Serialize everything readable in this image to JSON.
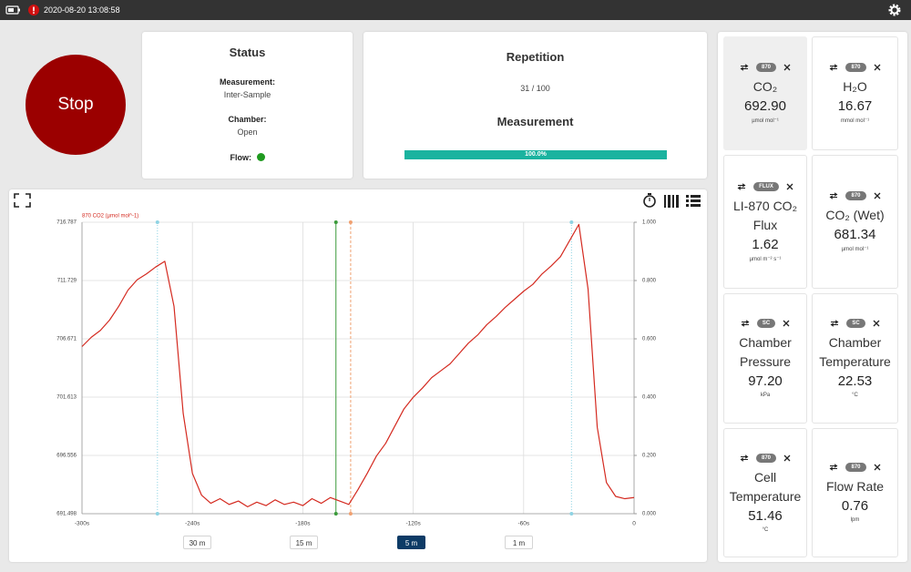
{
  "status_bar": {
    "timestamp": "2020-08-20 13:08:58"
  },
  "stop_button": "Stop",
  "status": {
    "title": "Status",
    "measurement_label": "Measurement:",
    "measurement": "Inter-Sample",
    "chamber_label": "Chamber:",
    "chamber": "Open",
    "flow_label": "Flow:"
  },
  "repetition": {
    "title": "Repetition",
    "count": "31 / 100",
    "measurement_title": "Measurement",
    "progress": 100,
    "progress_label": "100.0%"
  },
  "chart_data": {
    "type": "line",
    "x": [
      -300,
      -295,
      -290,
      -285,
      -280,
      -275,
      -270,
      -265,
      -260,
      -255,
      -250,
      -245,
      -240,
      -235,
      -230,
      -225,
      -220,
      -215,
      -210,
      -205,
      -200,
      -195,
      -190,
      -185,
      -180,
      -175,
      -170,
      -165,
      -160,
      -155,
      -150,
      -145,
      -140,
      -135,
      -130,
      -125,
      -120,
      -115,
      -110,
      -105,
      -100,
      -95,
      -90,
      -85,
      -80,
      -75,
      -70,
      -65,
      -60,
      -55,
      -50,
      -45,
      -40,
      -35,
      -30,
      -25,
      -20,
      -15,
      -10,
      -5,
      0
    ],
    "series": [
      {
        "name": "870 CO2 (µmol mol^-1)",
        "color": "#d42a20",
        "values": [
          706.0,
          706.8,
          707.4,
          708.3,
          709.5,
          710.9,
          711.8,
          712.3,
          712.9,
          713.4,
          709.5,
          700.2,
          695.0,
          693.1,
          692.4,
          692.8,
          692.3,
          692.6,
          692.1,
          692.5,
          692.2,
          692.7,
          692.3,
          692.5,
          692.2,
          692.8,
          692.4,
          692.9,
          692.6,
          692.3,
          693.6,
          695.0,
          696.5,
          697.6,
          699.1,
          700.6,
          701.6,
          702.4,
          703.3,
          703.9,
          704.5,
          705.4,
          706.3,
          707.0,
          707.9,
          708.6,
          709.4,
          710.1,
          710.8,
          711.4,
          712.3,
          713.0,
          713.8,
          715.2,
          716.6,
          711.0,
          699.0,
          694.2,
          693.0,
          692.8,
          692.9
        ]
      }
    ],
    "xlim": [
      -300,
      0
    ],
    "xticks": [
      {
        "value": -300,
        "label": "-300s"
      },
      {
        "value": -240,
        "label": "-240s"
      },
      {
        "value": -180,
        "label": "-180s"
      },
      {
        "value": -120,
        "label": "-120s"
      },
      {
        "value": -60,
        "label": "-60s"
      },
      0
    ],
    "ylim": [
      691.498,
      716.787
    ],
    "yticks": [
      691.498,
      696.556,
      701.613,
      706.671,
      711.729,
      716.787
    ],
    "y2lim": [
      0,
      1
    ],
    "y2ticks": [
      {
        "value": 0,
        "label": "0.000"
      },
      {
        "value": 0.2,
        "label": "0.200"
      },
      {
        "value": 0.4,
        "label": "0.400"
      },
      {
        "value": 0.6,
        "label": "0.600"
      },
      {
        "value": 0.8,
        "label": "0.800"
      },
      {
        "value": 1,
        "label": "1.000"
      }
    ],
    "grid": true,
    "markers": [
      {
        "x": -259,
        "color": "#8fd3e3",
        "style": "dotted"
      },
      {
        "x": -162,
        "color": "#3a9a3a",
        "style": "solid"
      },
      {
        "x": -154,
        "color": "#f0a070",
        "style": "dashed"
      },
      {
        "x": -34,
        "color": "#8fd3e3",
        "style": "dotted"
      }
    ]
  },
  "range_buttons": [
    {
      "label": "30 m"
    },
    {
      "label": "15 m"
    },
    {
      "label": "5 m",
      "active": true
    },
    {
      "label": "1 m"
    }
  ],
  "tiles": [
    {
      "badge": "870",
      "name": "CO₂",
      "value": "692.90",
      "unit": "µmol mol⁻¹",
      "selected": true
    },
    {
      "badge": "870",
      "name": "H₂O",
      "value": "16.67",
      "unit": "mmol mol⁻¹"
    },
    {
      "badge": "FLUX",
      "name": "LI-870 CO₂ Flux",
      "value": "1.62",
      "unit": "µmol m⁻² s⁻¹"
    },
    {
      "badge": "870",
      "name": "CO₂ (Wet)",
      "value": "681.34",
      "unit": "µmol mol⁻¹"
    },
    {
      "badge": "SC",
      "name": "Chamber Pressure",
      "value": "97.20",
      "unit": "kPa"
    },
    {
      "badge": "SC",
      "name": "Chamber Temperature",
      "value": "22.53",
      "unit": "°C"
    },
    {
      "badge": "870",
      "name": "Cell Temperature",
      "value": "51.46",
      "unit": "°C"
    },
    {
      "badge": "870",
      "name": "Flow Rate",
      "value": "0.76",
      "unit": "lpm"
    }
  ]
}
